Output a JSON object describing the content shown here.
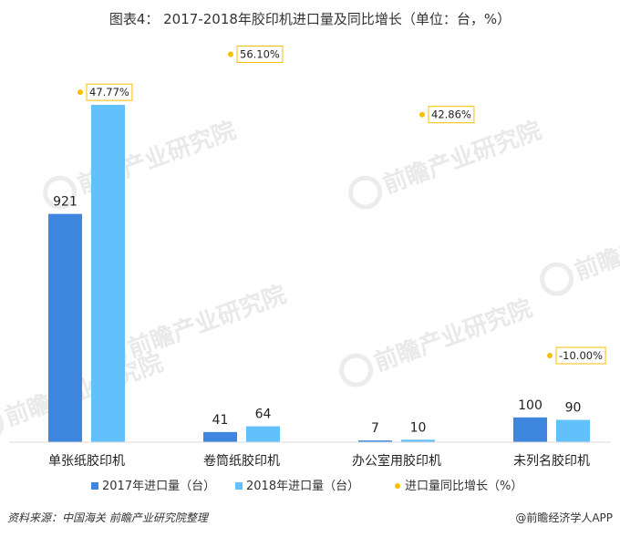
{
  "chart_data": {
    "type": "bar",
    "title": "图表4： 2017-2018年胶印机进口量及同比增长（单位：台，%）",
    "categories": [
      "单张纸胶印机",
      "卷筒纸胶印机",
      "办公室用胶印机",
      "未列名胶印机"
    ],
    "series": [
      {
        "name": "2017年进口量（台）",
        "values": [
          921,
          41,
          7,
          100
        ],
        "color": "#3f86de"
      },
      {
        "name": "2018年进口量（台）",
        "values": [
          1361,
          64,
          10,
          90
        ],
        "color": "#62c0fb"
      }
    ],
    "yoy": {
      "name": "进口量同比增长（%）",
      "values": [
        47.77,
        56.1,
        42.86,
        -10.0
      ],
      "labels": [
        "47.77%",
        "56.10%",
        "42.86%",
        "-10.00%"
      ],
      "color": "#f5c000"
    },
    "ylim": [
      0,
      1361
    ],
    "grid": false,
    "legend_position": "bottom"
  },
  "watermark": "前瞻产业研究院",
  "footer": {
    "source": "资料来源：中国海关  前瞻产业研究院整理",
    "brand": "@前瞻经济学人APP"
  }
}
